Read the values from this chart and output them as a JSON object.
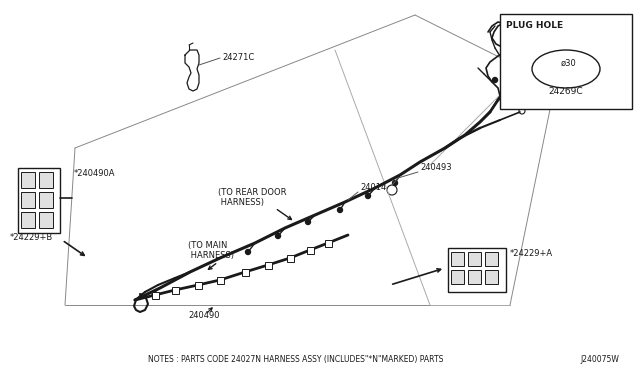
{
  "bg_color": "#ffffff",
  "line_color": "#1a1a1a",
  "notes_text": "NOTES : PARTS CODE 24027N HARNESS ASSY (INCLUDES\"*N\"MARKED) PARTS",
  "diagram_id": "J240075W",
  "plug_hole_label": "PLUG HOLE",
  "plug_hole_part": "24269C",
  "plug_hole_size": "ø30",
  "border_color": "#cccccc"
}
